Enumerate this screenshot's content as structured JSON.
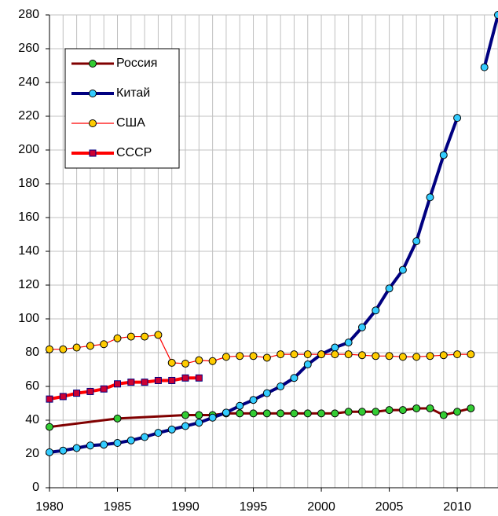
{
  "chart_data": {
    "type": "line",
    "xlim": [
      1980,
      2013
    ],
    "ylim": [
      0,
      280
    ],
    "xticks": [
      1980,
      1985,
      1990,
      1995,
      2000,
      2005,
      2010
    ],
    "yticks": [
      0,
      20,
      40,
      60,
      80,
      100,
      120,
      140,
      160,
      180,
      200,
      220,
      240,
      260,
      280
    ],
    "grid": true,
    "legend": "upper left",
    "series": [
      {
        "name": "Россия",
        "color": "#800000",
        "marker_color": "#33cc33",
        "marker": "circle",
        "width": 3,
        "x": [
          1980,
          1985,
          1990,
          1991,
          1992,
          1993,
          1994,
          1995,
          1996,
          1997,
          1998,
          1999,
          2000,
          2001,
          2002,
          2003,
          2004,
          2005,
          2006,
          2007,
          2008,
          2009,
          2010,
          2011
        ],
        "values": [
          36,
          41,
          43,
          43,
          43,
          44,
          44,
          44,
          44,
          44,
          44,
          44,
          44,
          44,
          45,
          45,
          45,
          46,
          46,
          47,
          47,
          43,
          45,
          47
        ]
      },
      {
        "name": "Китай",
        "color": "#000080",
        "marker_color": "#33ccff",
        "marker": "circle",
        "width": 4,
        "x": [
          1980,
          1981,
          1982,
          1983,
          1984,
          1985,
          1986,
          1987,
          1988,
          1989,
          1990,
          1991,
          1992,
          1993,
          1994,
          1995,
          1996,
          1997,
          1998,
          1999,
          2000,
          2001,
          2002,
          2003,
          2004,
          2005,
          2006,
          2007,
          2008,
          2009,
          2010,
          2011,
          2012,
          2013
        ],
        "values": [
          21,
          22,
          23.5,
          25,
          25.5,
          26.5,
          28,
          30,
          32.5,
          34.5,
          36.5,
          38.5,
          41.5,
          44.5,
          48.5,
          52,
          56,
          60,
          65,
          73,
          79,
          83,
          86,
          95,
          105,
          118,
          129,
          146,
          172,
          197,
          219,
          null,
          249,
          280
        ]
      },
      {
        "name": "США",
        "color": "#ff0000",
        "marker_color": "#ffcc00",
        "marker": "circle",
        "width": 1.2,
        "x": [
          1980,
          1981,
          1982,
          1983,
          1984,
          1985,
          1986,
          1987,
          1988,
          1989,
          1990,
          1991,
          1992,
          1993,
          1994,
          1995,
          1996,
          1997,
          1998,
          1999,
          2000,
          2001,
          2002,
          2003,
          2004,
          2005,
          2006,
          2007,
          2008,
          2009,
          2010,
          2011
        ],
        "values": [
          82,
          82,
          83,
          84,
          85,
          88.5,
          89.5,
          89.5,
          90.5,
          74,
          73.5,
          75.5,
          75,
          77.5,
          78,
          78,
          77,
          79,
          79,
          79,
          79,
          79,
          79,
          78.5,
          78,
          78,
          77.5,
          77.5,
          78,
          78.5,
          79,
          79
        ]
      },
      {
        "name": "СССР",
        "color": "#ff0000",
        "marker_color": "#cc0033",
        "marker": "square",
        "width": 4,
        "x": [
          1980,
          1981,
          1982,
          1983,
          1984,
          1985,
          1986,
          1987,
          1988,
          1989,
          1990,
          1991
        ],
        "values": [
          52.5,
          54,
          56,
          57,
          58.5,
          61.5,
          62.5,
          62.5,
          63.5,
          63.5,
          65,
          65
        ]
      }
    ]
  }
}
